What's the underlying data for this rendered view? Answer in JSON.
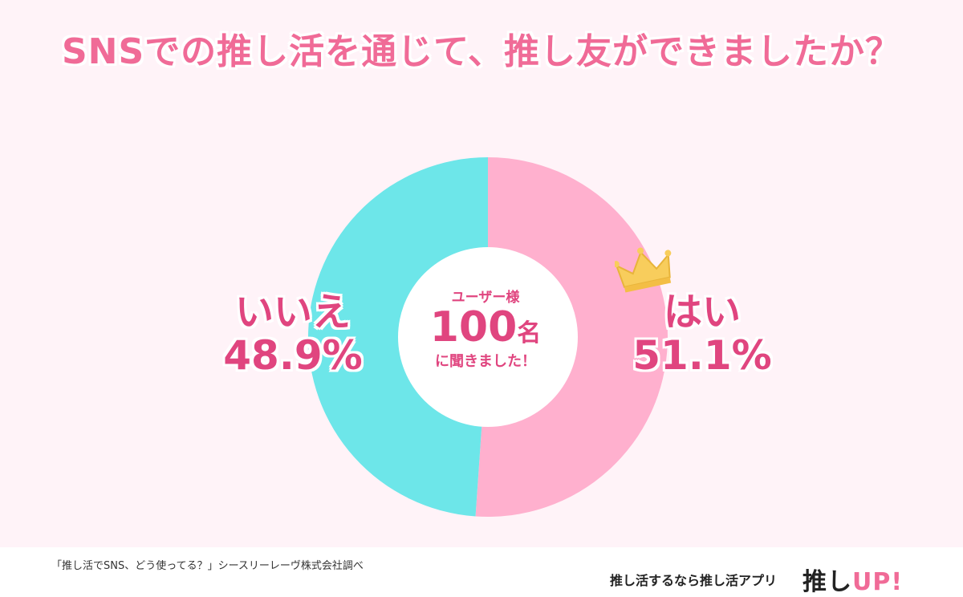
{
  "title": "SNSでの推し活を通じて、推し友ができましたか？",
  "center": {
    "top": "ユーザー様",
    "number": "100",
    "unit": "名",
    "bottom": "に聞きました！"
  },
  "colors": {
    "yes": "#ffb0ce",
    "no": "#6de6e9",
    "accent": "#e0457f",
    "crown": "#f8cd5c"
  },
  "chart_data": {
    "type": "pie",
    "donut": true,
    "slices": [
      {
        "label": "はい",
        "value": 51.1,
        "display": "51.1%"
      },
      {
        "label": "いいえ",
        "value": 48.9,
        "display": "48.9%"
      }
    ]
  },
  "footer": {
    "source": "「推し活でSNS、どう使ってる？」シースリーレーヴ株式会社調べ",
    "tagline": "推し活するなら推し活アプリ",
    "logo_main": "推し",
    "logo_accent": "UP!"
  },
  "icons": {
    "crown": "crown-icon"
  }
}
